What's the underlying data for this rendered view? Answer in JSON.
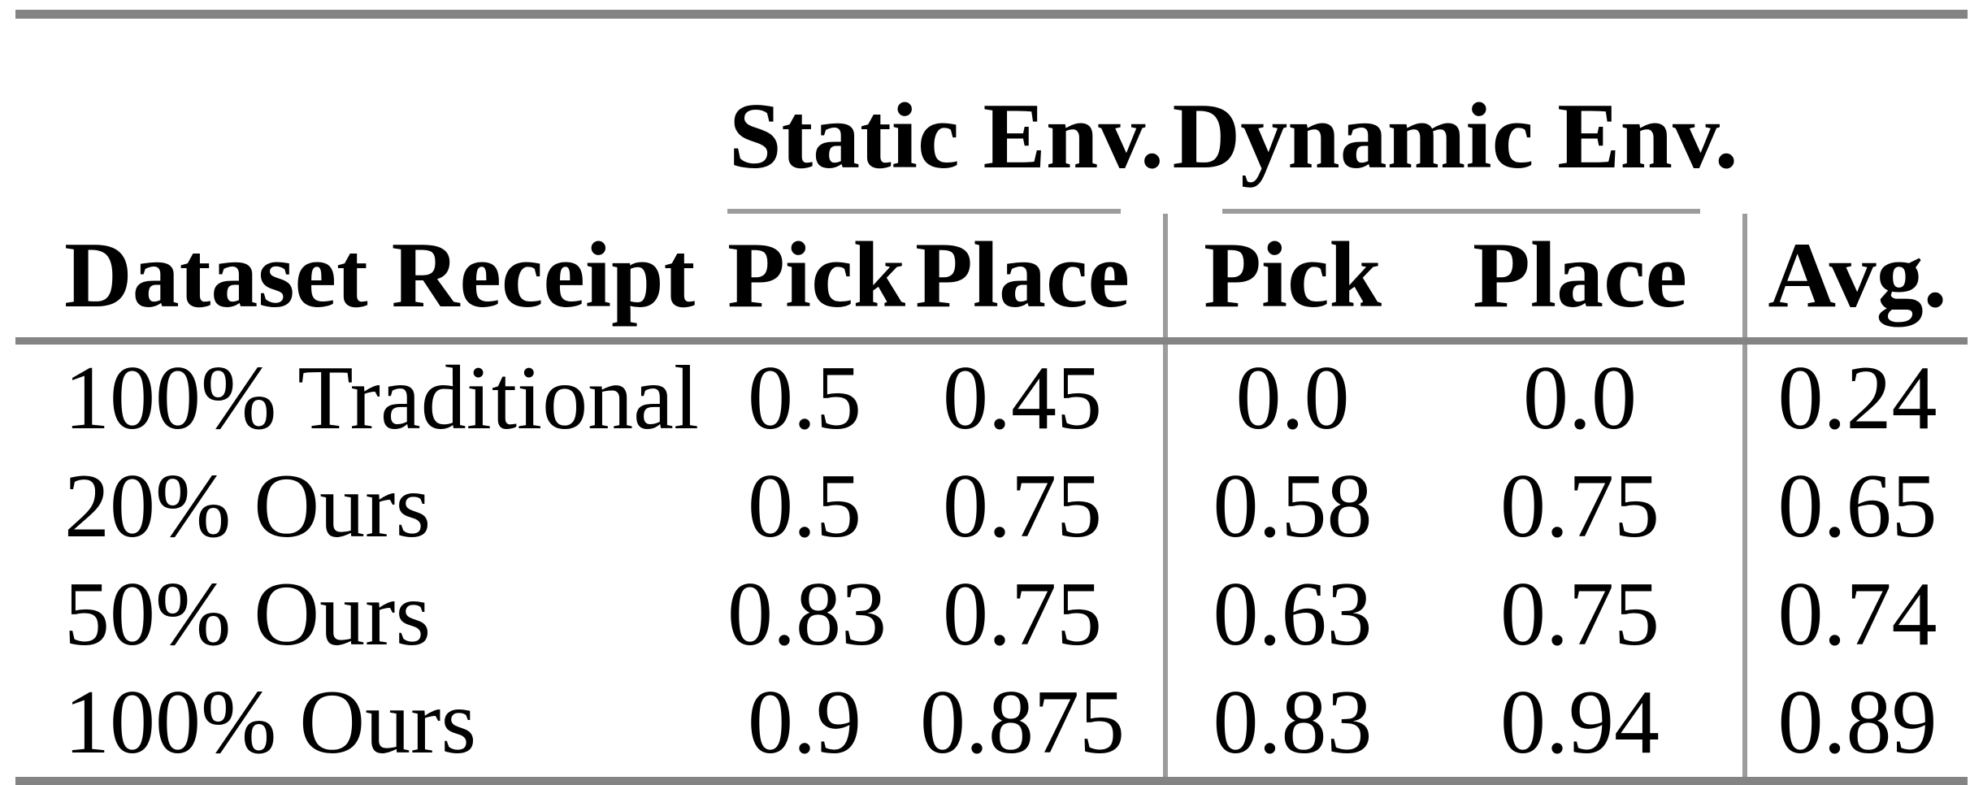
{
  "table": {
    "group_headers": {
      "static": "Static Env.",
      "dynamic": "Dynamic Env."
    },
    "columns": {
      "dataset": "Dataset Receipt",
      "static_pick": "Pick",
      "static_place": "Place",
      "dynamic_pick": "Pick",
      "dynamic_place": "Place",
      "avg": "Avg."
    },
    "rows": [
      {
        "dataset": "100% Traditional",
        "static_pick": "0.5",
        "static_place": "0.45",
        "dynamic_pick": "0.0",
        "dynamic_place": "0.0",
        "avg": "0.24"
      },
      {
        "dataset": "20% Ours",
        "static_pick": "0.5",
        "static_place": "0.75",
        "dynamic_pick": "0.58",
        "dynamic_place": "0.75",
        "avg": "0.65"
      },
      {
        "dataset": "50% Ours",
        "static_pick": "0.83",
        "static_place": "0.75",
        "dynamic_pick": "0.63",
        "dynamic_place": "0.75",
        "avg": "0.74"
      },
      {
        "dataset": "100% Ours",
        "static_pick": "0.9",
        "static_place": "0.875",
        "dynamic_pick": "0.83",
        "dynamic_place": "0.94",
        "avg": "0.89"
      }
    ]
  },
  "colors": {
    "heavy_rule": "#848484",
    "light_rule": "#9c9c9c",
    "text": "#000000",
    "background": "#ffffff"
  },
  "chart_data": {
    "type": "table",
    "title": "",
    "group_headers": [
      "Static Env.",
      "Dynamic Env."
    ],
    "columns": [
      "Dataset Receipt",
      "Static Pick",
      "Static Place",
      "Dynamic Pick",
      "Dynamic Place",
      "Avg."
    ],
    "rows": [
      [
        "100% Traditional",
        0.5,
        0.45,
        0.0,
        0.0,
        0.24
      ],
      [
        "20% Ours",
        0.5,
        0.75,
        0.58,
        0.75,
        0.65
      ],
      [
        "50% Ours",
        0.83,
        0.75,
        0.63,
        0.75,
        0.74
      ],
      [
        "100% Ours",
        0.9,
        0.875,
        0.83,
        0.94,
        0.89
      ]
    ]
  }
}
